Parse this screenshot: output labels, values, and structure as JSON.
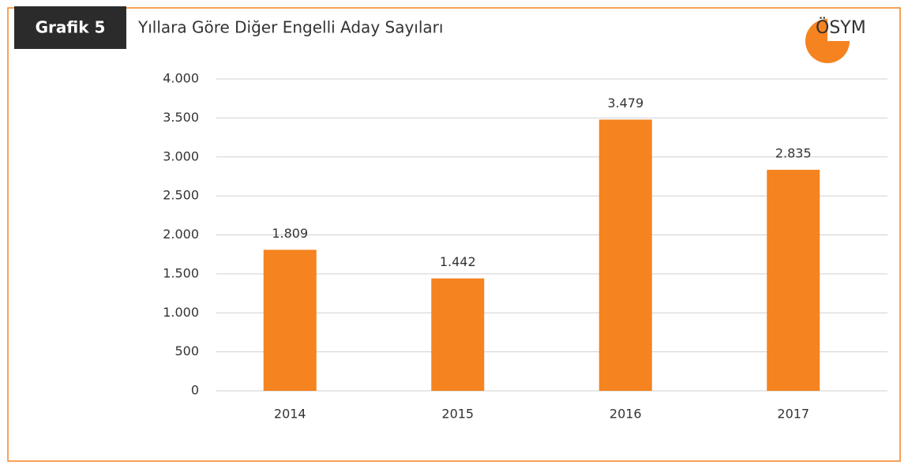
{
  "chart_data": {
    "type": "bar",
    "badge": "Grafik 5",
    "title": "Yıllara Göre Diğer Engelli Aday Sayıları",
    "logo": "ÖSYM",
    "categories": [
      "2014",
      "2015",
      "2016",
      "2017"
    ],
    "values": [
      1809,
      1442,
      3479,
      2835
    ],
    "value_labels": [
      "1.809",
      "1.442",
      "3.479",
      "2.835"
    ],
    "color": "#f5831f",
    "ylim": [
      0,
      4000
    ],
    "yticks": [
      0,
      {
        "value": 500,
        "label": "500"
      },
      {
        "value": 1000,
        "label": "1.000"
      },
      {
        "value": 1500,
        "label": "1.500"
      },
      {
        "value": 2000,
        "label": "2.000"
      },
      {
        "value": 2500,
        "label": "2.500"
      },
      {
        "value": 3000,
        "label": "3.000"
      },
      {
        "value": 3500,
        "label": "3.500"
      },
      {
        "value": 4000,
        "label": "4.000"
      }
    ],
    "grid": true
  }
}
